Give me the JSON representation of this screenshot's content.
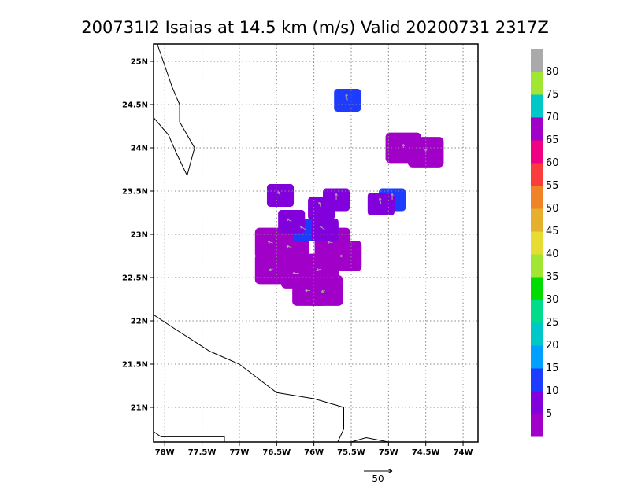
{
  "chart_data": {
    "type": "heatmap",
    "title": "200731I2 Isaias at 14.5 km (m/s) Valid 20200731  2317Z",
    "lon_range": [
      -78.15,
      -73.8
    ],
    "lat_range": [
      20.6,
      25.2
    ],
    "x_ticks": [
      {
        "v": -78.0,
        "label": "78W"
      },
      {
        "v": -77.5,
        "label": "77.5W"
      },
      {
        "v": -77.0,
        "label": "77W"
      },
      {
        "v": -76.5,
        "label": "76.5W"
      },
      {
        "v": -76.0,
        "label": "76W"
      },
      {
        "v": -75.5,
        "label": "75.5W"
      },
      {
        "v": -75.0,
        "label": "75W"
      },
      {
        "v": -74.5,
        "label": "74.5W"
      },
      {
        "v": -74.0,
        "label": "74W"
      }
    ],
    "y_ticks": [
      {
        "v": 21.0,
        "label": "21N"
      },
      {
        "v": 21.5,
        "label": "21.5N"
      },
      {
        "v": 22.0,
        "label": "22N"
      },
      {
        "v": 22.5,
        "label": "22.5N"
      },
      {
        "v": 23.0,
        "label": "23N"
      },
      {
        "v": 23.5,
        "label": "23.5N"
      },
      {
        "v": 24.0,
        "label": "24N"
      },
      {
        "v": 24.5,
        "label": "24.5N"
      },
      {
        "v": 25.0,
        "label": "25N"
      }
    ],
    "grid": true,
    "colorbar": {
      "colors": [
        "#a000c8",
        "#8200dc",
        "#1e3cff",
        "#00a0ff",
        "#00c8c8",
        "#00dc8c",
        "#00dc00",
        "#a0e632",
        "#e6dc32",
        "#e6af2d",
        "#f08228",
        "#fa3c3c",
        "#f00082",
        "#a000c8",
        "#00c8c8",
        "#a0e632",
        "#aaaaaa"
      ],
      "labels": [
        "5",
        "10",
        "15",
        "20",
        "25",
        "30",
        "35",
        "40",
        "45",
        "50",
        "55",
        "60",
        "65",
        "70",
        "75",
        "80"
      ]
    },
    "coastlines": [
      [
        [
          -78.15,
          25.2
        ],
        [
          -78.1,
          25.2
        ],
        [
          -78.08,
          25.15
        ],
        [
          -77.9,
          24.7
        ],
        [
          -77.8,
          24.5
        ],
        [
          -77.8,
          24.3
        ],
        [
          -77.6,
          24.0
        ],
        [
          -77.7,
          23.68
        ],
        [
          -77.85,
          23.95
        ],
        [
          -77.95,
          24.15
        ],
        [
          -78.15,
          24.35
        ]
      ],
      [
        [
          -78.15,
          22.07
        ],
        [
          -77.85,
          21.9
        ],
        [
          -77.4,
          21.65
        ],
        [
          -77.0,
          21.5
        ],
        [
          -76.5,
          21.17
        ],
        [
          -76.0,
          21.1
        ],
        [
          -75.8,
          21.05
        ],
        [
          -75.6,
          21.0
        ],
        [
          -75.6,
          20.75
        ],
        [
          -75.68,
          20.6
        ]
      ],
      [
        [
          -75.5,
          20.6
        ],
        [
          -75.3,
          20.65
        ],
        [
          -75.0,
          20.6
        ]
      ],
      [
        [
          -78.15,
          20.72
        ],
        [
          -78.05,
          20.66
        ],
        [
          -77.2,
          20.66
        ],
        [
          -77.2,
          20.6
        ]
      ]
    ],
    "wind_field": {
      "units": "m/s",
      "cells": [
        {
          "lon": -76.3,
          "lat": 22.85,
          "speed": 5,
          "u": -4,
          "v": 1
        },
        {
          "lon": -76.55,
          "lat": 22.9,
          "speed": 5,
          "u": -4,
          "v": 1
        },
        {
          "lon": -76.55,
          "lat": 22.6,
          "speed": 5,
          "u": -3,
          "v": -1
        },
        {
          "lon": -76.2,
          "lat": 22.55,
          "speed": 5,
          "u": -5,
          "v": 0
        },
        {
          "lon": -75.9,
          "lat": 22.6,
          "speed": 5,
          "u": -4,
          "v": -1
        },
        {
          "lon": -75.75,
          "lat": 22.9,
          "speed": 5,
          "u": -4,
          "v": 1
        },
        {
          "lon": -75.85,
          "lat": 22.35,
          "speed": 5,
          "u": -3,
          "v": -1
        },
        {
          "lon": -76.05,
          "lat": 22.35,
          "speed": 5,
          "u": -4,
          "v": 0
        },
        {
          "lon": -75.6,
          "lat": 22.75,
          "speed": 5,
          "u": -3,
          "v": 0
        },
        {
          "lon": -76.1,
          "lat": 23.05,
          "speed": 15,
          "u": -5,
          "v": 3
        },
        {
          "lon": -75.9,
          "lat": 23.3,
          "speed": 10,
          "u": -2,
          "v": 5
        },
        {
          "lon": -75.7,
          "lat": 23.4,
          "speed": 10,
          "u": 0,
          "v": 5
        },
        {
          "lon": -75.85,
          "lat": 23.05,
          "speed": 10,
          "u": -4,
          "v": 3
        },
        {
          "lon": -76.3,
          "lat": 23.15,
          "speed": 10,
          "u": -4,
          "v": 2
        },
        {
          "lon": -74.95,
          "lat": 23.4,
          "speed": 15,
          "u": 0,
          "v": 5
        },
        {
          "lon": -75.1,
          "lat": 23.35,
          "speed": 10,
          "u": -1,
          "v": 5
        },
        {
          "lon": -75.55,
          "lat": 24.55,
          "speed": 15,
          "u": -1,
          "v": 5
        },
        {
          "lon": -74.5,
          "lat": 23.95,
          "speed": 5,
          "u": 0,
          "v": 3
        },
        {
          "lon": -74.8,
          "lat": 24.0,
          "speed": 5,
          "u": 0,
          "v": 3
        },
        {
          "lon": -76.45,
          "lat": 23.45,
          "speed": 10,
          "u": -2,
          "v": 3
        }
      ]
    },
    "reference_vector": {
      "label": "50",
      "value": 50
    }
  }
}
